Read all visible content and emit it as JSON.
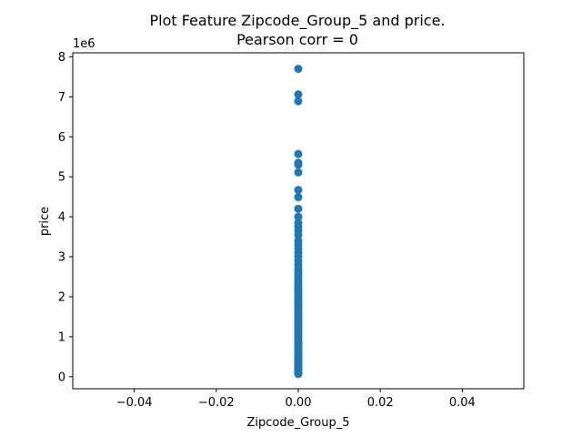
{
  "chart_data": {
    "type": "scatter",
    "title_lines": [
      "Plot Feature Zipcode_Group_5 and price.",
      "Pearson corr = 0"
    ],
    "xlabel": "Zipcode_Group_5",
    "ylabel": "price",
    "y_offset_label": "1e6",
    "xlim": [
      -0.055,
      0.055
    ],
    "ylim": [
      -0.3,
      8.1
    ],
    "x_ticks": [
      -0.04,
      -0.02,
      0.0,
      0.02,
      0.04
    ],
    "x_tick_labels": [
      "−0.04",
      "−0.02",
      "0.00",
      "0.02",
      "0.04"
    ],
    "y_ticks": [
      0,
      1,
      2,
      3,
      4,
      5,
      6,
      7,
      8
    ],
    "y_tick_labels": [
      "0",
      "1",
      "2",
      "3",
      "4",
      "5",
      "6",
      "7",
      "8"
    ],
    "grid": false,
    "marker_color": "#1f77b4",
    "series": [
      {
        "x": [
          0,
          0,
          0,
          0,
          0,
          0,
          0,
          0,
          0,
          0,
          0,
          0,
          0,
          0,
          0,
          0,
          0,
          0,
          0,
          0,
          0,
          0,
          0,
          0,
          0,
          0,
          0,
          0,
          0,
          0,
          0,
          0,
          0,
          0,
          0,
          0,
          0,
          0,
          0,
          0,
          0,
          0,
          0,
          0,
          0,
          0,
          0,
          0,
          0,
          0,
          0,
          0,
          0,
          0,
          0,
          0,
          0,
          0,
          0,
          0,
          0,
          0,
          0,
          0,
          0,
          0,
          0,
          0,
          0,
          0,
          0,
          0,
          0,
          0,
          0,
          0,
          0,
          0,
          0,
          0,
          0,
          0,
          0,
          0
        ],
        "y": [
          7.7,
          7.06,
          6.89,
          5.57,
          5.35,
          5.3,
          5.11,
          4.67,
          4.49,
          4.2,
          4.0,
          3.85,
          3.75,
          3.65,
          3.55,
          3.4,
          3.3,
          3.2,
          3.1,
          3.0,
          2.9,
          2.8,
          2.7,
          2.62,
          2.55,
          2.48,
          2.4,
          2.33,
          2.26,
          2.2,
          2.13,
          2.06,
          2.0,
          1.94,
          1.88,
          1.82,
          1.76,
          1.7,
          1.64,
          1.58,
          1.52,
          1.47,
          1.42,
          1.37,
          1.32,
          1.27,
          1.22,
          1.17,
          1.12,
          1.07,
          1.02,
          0.97,
          0.92,
          0.87,
          0.83,
          0.79,
          0.75,
          0.71,
          0.67,
          0.63,
          0.59,
          0.55,
          0.51,
          0.48,
          0.45,
          0.42,
          0.39,
          0.36,
          0.33,
          0.3,
          0.27,
          0.25,
          0.23,
          0.21,
          0.19,
          0.17,
          0.15,
          0.13,
          0.11,
          0.1,
          0.09,
          0.08,
          0.075,
          0.07
        ]
      }
    ]
  }
}
